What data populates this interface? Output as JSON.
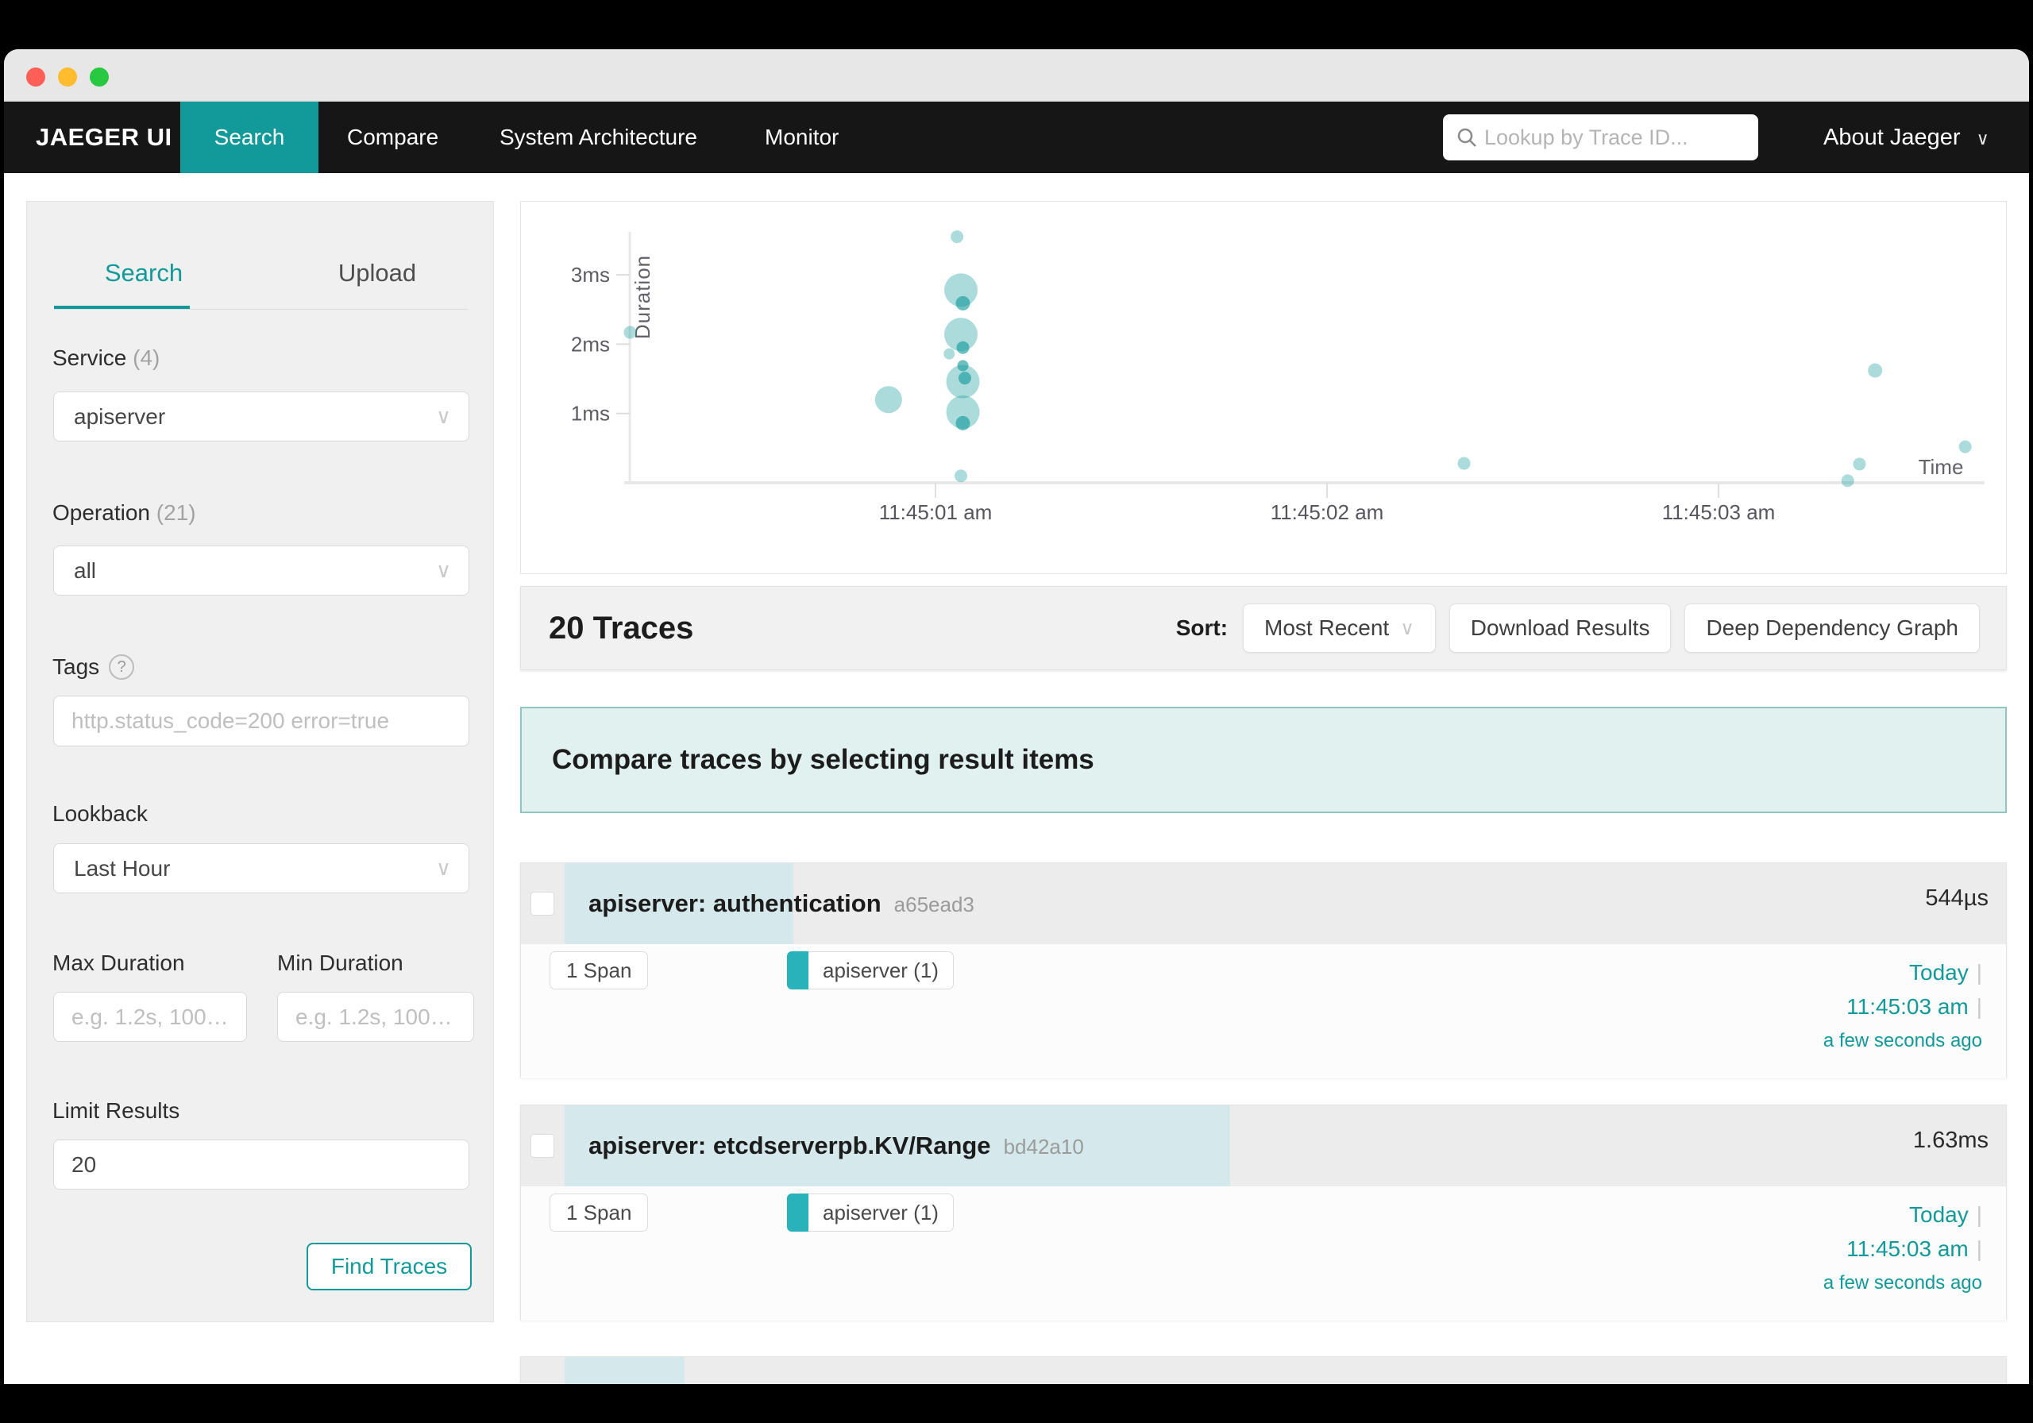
{
  "window": {
    "traffic_lights": {
      "close": "#ff5f57",
      "minimize": "#febc2e",
      "zoom": "#28c840"
    }
  },
  "navbar": {
    "brand": "JAEGER UI",
    "items": [
      {
        "label": "Search",
        "active": true
      },
      {
        "label": "Compare",
        "active": false
      },
      {
        "label": "System Architecture",
        "active": false
      },
      {
        "label": "Monitor",
        "active": false
      }
    ],
    "search_placeholder": "Lookup by Trace ID...",
    "about_label": "About Jaeger"
  },
  "sidebar": {
    "tabs": [
      "Search",
      "Upload"
    ],
    "active_tab": "Search",
    "service": {
      "label": "Service",
      "count": "(4)",
      "value": "apiserver"
    },
    "operation": {
      "label": "Operation",
      "count": "(21)",
      "value": "all"
    },
    "tags": {
      "label": "Tags",
      "placeholder": "http.status_code=200 error=true"
    },
    "lookback": {
      "label": "Lookback",
      "value": "Last Hour"
    },
    "max_duration": {
      "label": "Max Duration",
      "placeholder": "e.g. 1.2s, 100…"
    },
    "min_duration": {
      "label": "Min Duration",
      "placeholder": "e.g. 1.2s, 100…"
    },
    "limit": {
      "label": "Limit Results",
      "value": "20"
    },
    "find_button": "Find Traces"
  },
  "results": {
    "count_title": "20 Traces",
    "sort_label": "Sort:",
    "sort_value": "Most Recent",
    "download_button": "Download Results",
    "ddg_button": "Deep Dependency Graph",
    "banner": "Compare traces by selecting result items"
  },
  "traces": [
    {
      "title": "apiserver: authentication",
      "trace_id": "a65ead3",
      "duration": "544µs",
      "spans": "1 Span",
      "service_chip": "apiserver (1)",
      "date": "Today",
      "time": "11:45:03 am",
      "relative": "a few seconds ago",
      "bar_percent": 15.4
    },
    {
      "title": "apiserver: etcdserverpb.KV/Range",
      "trace_id": "bd42a10",
      "duration": "1.63ms",
      "spans": "1 Span",
      "service_chip": "apiserver (1)",
      "date": "Today",
      "time": "11:45:03 am",
      "relative": "a few seconds ago",
      "bar_percent": 44.8
    },
    {
      "title": "",
      "trace_id": "",
      "duration": "",
      "bar_percent": 8.1
    }
  ],
  "chart_data": {
    "type": "scatter",
    "title": "",
    "xlabel": "Time",
    "ylabel": "Duration",
    "x_ticks": [
      {
        "t": 1,
        "label": "11:45:01 am"
      },
      {
        "t": 2,
        "label": "11:45:02 am"
      },
      {
        "t": 3,
        "label": "11:45:03 am"
      }
    ],
    "y_ticks": [
      {
        "ms": 1,
        "label": "1ms"
      },
      {
        "ms": 2,
        "label": "2ms"
      },
      {
        "ms": 3,
        "label": "3ms"
      }
    ],
    "x_range_seconds": [
      0.2,
      3.65
    ],
    "y_range_ms": [
      0,
      4.1
    ],
    "grid": false,
    "points": [
      {
        "t": 0.22,
        "ms": 2.17,
        "r": 8,
        "emphasis": "light"
      },
      {
        "t": 0.88,
        "ms": 1.2,
        "r": 17,
        "emphasis": "light"
      },
      {
        "t": 1.055,
        "ms": 3.55,
        "r": 8,
        "emphasis": "light"
      },
      {
        "t": 1.065,
        "ms": 2.78,
        "r": 21,
        "emphasis": "light"
      },
      {
        "t": 1.07,
        "ms": 2.59,
        "r": 9,
        "emphasis": "dark"
      },
      {
        "t": 1.065,
        "ms": 2.14,
        "r": 21,
        "emphasis": "light"
      },
      {
        "t": 1.07,
        "ms": 1.95,
        "r": 8,
        "emphasis": "dark"
      },
      {
        "t": 1.035,
        "ms": 1.86,
        "r": 7,
        "emphasis": "light"
      },
      {
        "t": 1.07,
        "ms": 1.69,
        "r": 7,
        "emphasis": "dark"
      },
      {
        "t": 1.075,
        "ms": 1.51,
        "r": 8,
        "emphasis": "dark"
      },
      {
        "t": 1.07,
        "ms": 1.46,
        "r": 21,
        "emphasis": "light"
      },
      {
        "t": 1.07,
        "ms": 1.02,
        "r": 21,
        "emphasis": "light"
      },
      {
        "t": 1.07,
        "ms": 0.86,
        "r": 9,
        "emphasis": "dark"
      },
      {
        "t": 1.065,
        "ms": 0.1,
        "r": 8,
        "emphasis": "light"
      },
      {
        "t": 2.35,
        "ms": 0.28,
        "r": 8,
        "emphasis": "light"
      },
      {
        "t": 3.4,
        "ms": 1.62,
        "r": 9,
        "emphasis": "light"
      },
      {
        "t": 3.36,
        "ms": 0.27,
        "r": 8,
        "emphasis": "light"
      },
      {
        "t": 3.33,
        "ms": 0.03,
        "r": 8,
        "emphasis": "light"
      },
      {
        "t": 3.63,
        "ms": 0.52,
        "r": 8,
        "emphasis": "light"
      }
    ]
  },
  "icons": {
    "chevron_down": "∨",
    "help_glyph": "?",
    "pipe": "|"
  },
  "colors": {
    "brand_teal": "#12999a",
    "chip_teal": "#29b2b9",
    "scatter_fill": "#12999a",
    "banner_bg": "#e0f1ef",
    "banner_border": "#8cc8c1",
    "duration_bar": "#d5e8ec",
    "navbar_bg": "#161616",
    "card_header_gray": "#ececec"
  }
}
